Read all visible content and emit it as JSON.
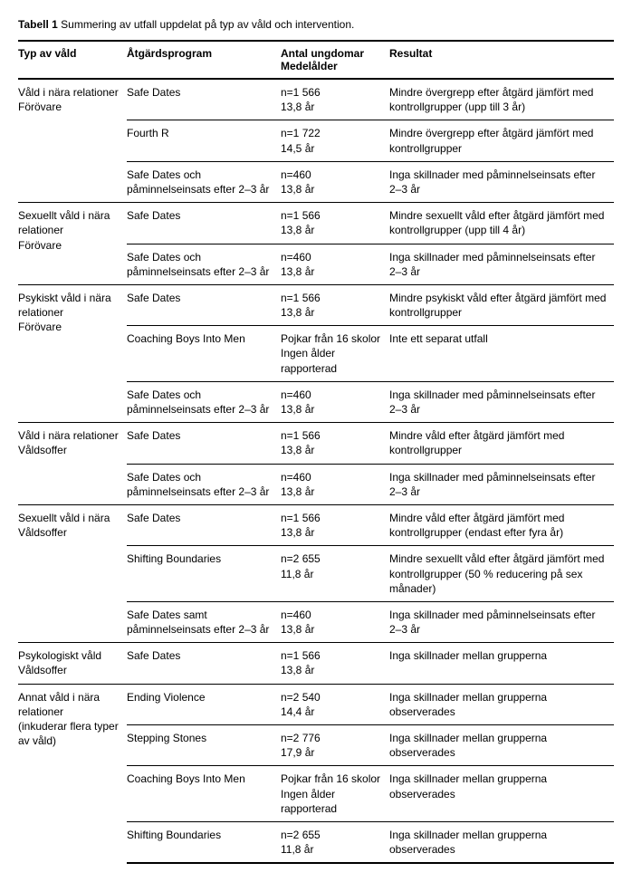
{
  "title_label": "Tabell 1",
  "title_text": "Summering av utfall uppdelat på typ av våld och intervention.",
  "columns": {
    "c1": "Typ av våld",
    "c2": "Åtgärdsprogram",
    "c3a": "Antal ungdomar",
    "c3b": "Medelålder",
    "c4": "Resultat"
  },
  "groups": [
    {
      "type_lines": [
        "Våld i nära relationer",
        "Förövare"
      ],
      "rows": [
        {
          "program": "Safe Dates",
          "n": "n=1 566",
          "age": "13,8 år",
          "result": "Mindre övergrepp efter åtgärd jämfört med kontrollgrupper (upp till 3 år)"
        },
        {
          "program": "Fourth R",
          "n": "n=1 722",
          "age": "14,5 år",
          "result": "Mindre övergrepp efter åtgärd jämfört med kontrollgrupper"
        },
        {
          "program": "Safe Dates och påminnelseinsats efter 2–3 år",
          "n": "n=460",
          "age": "13,8 år",
          "result": "Inga skillnader med påminnelseinsats efter 2–3 år"
        }
      ]
    },
    {
      "type_lines": [
        "Sexuellt våld i nära",
        "relationer",
        "Förövare"
      ],
      "rows": [
        {
          "program": "Safe Dates",
          "n": "n=1 566",
          "age": "13,8 år",
          "result": "Mindre sexuellt våld efter åtgärd jämfört med kontrollgrupper (upp till 4 år)"
        },
        {
          "program": "Safe Dates och påminnelseinsats efter 2–3 år",
          "n": "n=460",
          "age": "13,8 år",
          "result": "Inga skillnader med påminnelseinsats efter 2–3 år"
        }
      ]
    },
    {
      "type_lines": [
        "Psykiskt våld i nära",
        "relationer",
        "Förövare"
      ],
      "rows": [
        {
          "program": "Safe Dates",
          "n": "n=1 566",
          "age": "13,8 år",
          "result": "Mindre psykiskt våld efter åtgärd jämfört med kontrollgrupper"
        },
        {
          "program": "Coaching Boys Into Men",
          "n": "Pojkar från 16 skolor",
          "age": "Ingen ålder rapporterad",
          "result": "Inte ett separat utfall"
        },
        {
          "program": "Safe Dates och påminnelseinsats efter 2–3 år",
          "n": "n=460",
          "age": "13,8 år",
          "result": "Inga skillnader med påminnelseinsats efter 2–3 år"
        }
      ]
    },
    {
      "type_lines": [
        "Våld i nära relationer",
        "Våldsoffer"
      ],
      "rows": [
        {
          "program": "Safe Dates",
          "n": "n=1 566",
          "age": "13,8 år",
          "result": "Mindre våld efter åtgärd jämfört med kontrollgrupper"
        },
        {
          "program": "Safe Dates och påminnelseinsats efter 2–3 år",
          "n": "n=460",
          "age": "13,8 år",
          "result": "Inga skillnader med påminnelseinsats efter 2–3 år"
        }
      ]
    },
    {
      "type_lines": [
        "Sexuellt våld i nära",
        "Våldsoffer"
      ],
      "rows": [
        {
          "program": "Safe Dates",
          "n": "n=1 566",
          "age": "13,8 år",
          "result": "Mindre våld efter åtgärd jämfört med kontrollgrupper (endast efter fyra år)"
        },
        {
          "program": "Shifting Boundaries",
          "n": "n=2 655",
          "age": "11,8 år",
          "result": "Mindre sexuellt våld efter åtgärd jämfört med kontrollgrupper (50 % reducering på sex månader)"
        },
        {
          "program": "Safe Dates samt påminnelseinsats efter 2–3 år",
          "n": "n=460",
          "age": "13,8 år",
          "result": "Inga skillnader med påminnelseinsats efter 2–3 år"
        }
      ]
    },
    {
      "type_lines": [
        "Psykologiskt våld",
        "Våldsoffer"
      ],
      "rows": [
        {
          "program": "Safe Dates",
          "n": "n=1 566",
          "age": "13,8 år",
          "result": "Inga skillnader mellan grupperna"
        }
      ]
    },
    {
      "type_lines": [
        "Annat våld i nära",
        "relationer",
        "(inkuderar flera typer",
        "av våld)"
      ],
      "rows": [
        {
          "program": "Ending Violence",
          "n": "n=2 540",
          "age": "14,4 år",
          "result": "Inga skillnader mellan grupperna observerades"
        },
        {
          "program": "Stepping Stones",
          "n": "n=2 776",
          "age": "17,9 år",
          "result": "Inga skillnader mellan grupperna observerades"
        },
        {
          "program": "Coaching Boys Into Men",
          "n": "Pojkar från 16 skolor",
          "age": "Ingen ålder rapporterad",
          "result": "Inga skillnader mellan grupperna observerades"
        },
        {
          "program": "Shifting Boundaries",
          "n": "n=2 655",
          "age": "11,8 år",
          "result": "Inga skillnader mellan grupperna observerades"
        }
      ]
    }
  ]
}
